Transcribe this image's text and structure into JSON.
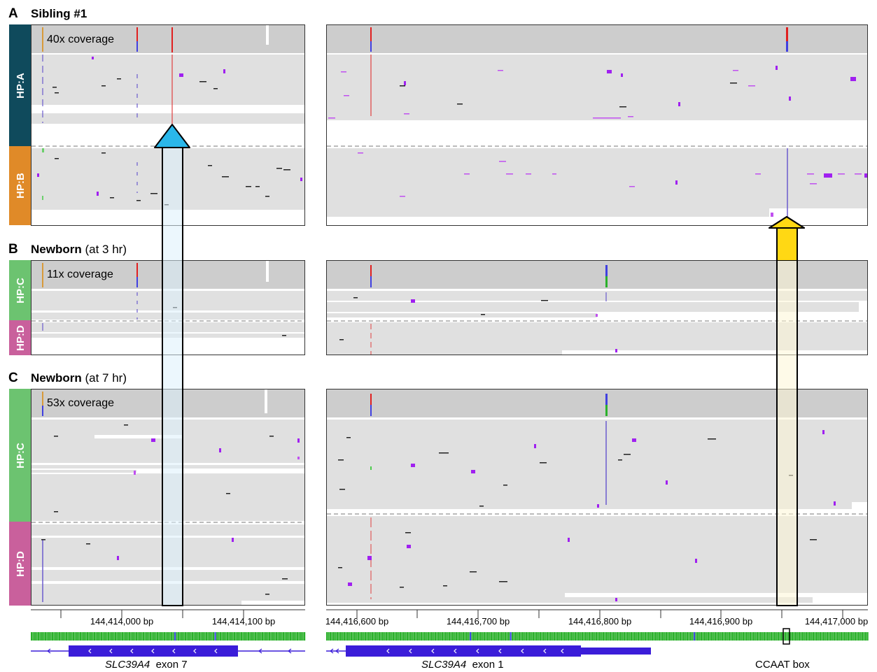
{
  "sections": [
    {
      "letter": "A",
      "title_bold": "Sibling #1",
      "title_rest": ""
    },
    {
      "letter": "B",
      "title_bold": "Newborn",
      "title_rest": " (at 3 hr)"
    },
    {
      "letter": "C",
      "title_bold": "Newborn",
      "title_rest": " (at 7 hr)"
    }
  ],
  "haplotypes": {
    "a": "HP:A",
    "b": "HP:B",
    "c1": "HP:C",
    "d1": "HP:D",
    "c2": "HP:C",
    "d2": "HP:D"
  },
  "colors": {
    "hp_a": "#0f4a5c",
    "hp_b": "#e08a28",
    "hp_c": "#6cc370",
    "hp_d": "#c9609c",
    "blue_arrow": "#2ab7ea",
    "yellow_arrow": "#ffd814"
  },
  "coverage": {
    "a": "40x coverage",
    "b": "11x coverage",
    "c": "53x coverage"
  },
  "axis_left": [
    "144,414,000 bp",
    "144,414,100 bp"
  ],
  "axis_right": [
    "144,416,600 bp",
    "144,416,700 bp",
    "144,416,800 bp",
    "144,416,900 bp",
    "144,417,000 bp"
  ],
  "genes": {
    "left_name": "SLC39A4",
    "left_exon": "exon 7",
    "right_name": "SLC39A4",
    "right_exon": "exon 1",
    "ccaat": "CCAAT box"
  }
}
